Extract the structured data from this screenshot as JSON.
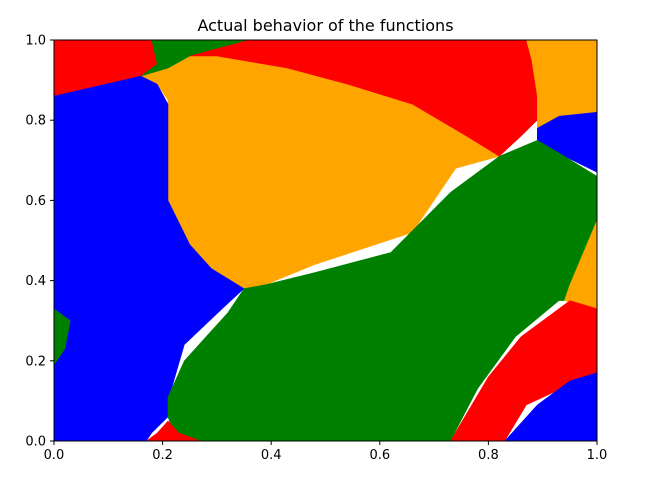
{
  "chart_data": {
    "type": "heatmap",
    "title": "Actual behavior of the functions",
    "xlabel": "",
    "ylabel": "",
    "xlim": [
      0,
      1
    ],
    "ylim": [
      0,
      1
    ],
    "xticks": [
      "0.0",
      "0.2",
      "0.4",
      "0.6",
      "0.8",
      "1.0"
    ],
    "yticks": [
      "0.0",
      "0.2",
      "0.4",
      "0.6",
      "0.8",
      "1.0"
    ],
    "grid": false,
    "legend": "none",
    "colors": [
      "red",
      "green",
      "blue",
      "orange"
    ],
    "regions": [
      {
        "color": "orange",
        "polygon": [
          [
            0.21,
            1.0
          ],
          [
            0.82,
            1.0
          ],
          [
            0.85,
            0.86
          ],
          [
            0.83,
            0.76
          ],
          [
            0.82,
            0.71
          ],
          [
            0.74,
            0.68
          ],
          [
            0.66,
            0.52
          ],
          [
            0.48,
            0.44
          ],
          [
            0.39,
            0.39
          ],
          [
            0.35,
            0.38
          ],
          [
            0.25,
            0.46
          ],
          [
            0.21,
            0.57
          ],
          [
            0.2,
            0.72
          ],
          [
            0.21,
            0.85
          ],
          [
            0.19,
            0.89
          ],
          [
            0.16,
            0.91
          ]
        ]
      },
      {
        "color": "red",
        "polygon": [
          [
            0.0,
            1.0
          ],
          [
            0.18,
            1.0
          ],
          [
            0.19,
            0.94
          ],
          [
            0.16,
            0.91
          ],
          [
            0.0,
            0.86
          ]
        ]
      },
      {
        "color": "green",
        "polygon": [
          [
            0.18,
            1.0
          ],
          [
            0.36,
            1.0
          ],
          [
            0.25,
            0.96
          ],
          [
            0.21,
            0.93
          ],
          [
            0.16,
            0.91
          ],
          [
            0.19,
            0.94
          ]
        ]
      },
      {
        "color": "red",
        "polygon": [
          [
            0.36,
            1.0
          ],
          [
            0.89,
            1.0
          ],
          [
            0.89,
            0.93
          ],
          [
            0.89,
            0.86
          ],
          [
            0.89,
            0.8
          ],
          [
            0.86,
            0.76
          ],
          [
            0.82,
            0.71
          ],
          [
            0.76,
            0.76
          ],
          [
            0.66,
            0.84
          ],
          [
            0.54,
            0.89
          ],
          [
            0.43,
            0.93
          ],
          [
            0.3,
            0.96
          ],
          [
            0.25,
            0.96
          ]
        ]
      },
      {
        "color": "orange",
        "polygon": [
          [
            0.87,
            1.0
          ],
          [
            1.0,
            1.0
          ],
          [
            1.0,
            0.81
          ],
          [
            0.93,
            0.81
          ],
          [
            0.9,
            0.78
          ],
          [
            0.89,
            0.75
          ],
          [
            0.89,
            0.86
          ],
          [
            0.88,
            0.95
          ]
        ]
      },
      {
        "color": "blue",
        "polygon": [
          [
            0.89,
            0.78
          ],
          [
            0.93,
            0.81
          ],
          [
            1.0,
            0.82
          ],
          [
            1.0,
            0.67
          ],
          [
            0.94,
            0.71
          ],
          [
            0.89,
            0.75
          ]
        ]
      },
      {
        "color": "blue",
        "polygon": [
          [
            0.0,
            0.86
          ],
          [
            0.16,
            0.91
          ],
          [
            0.19,
            0.89
          ],
          [
            0.21,
            0.84
          ],
          [
            0.21,
            0.74
          ],
          [
            0.21,
            0.6
          ],
          [
            0.25,
            0.49
          ],
          [
            0.29,
            0.43
          ],
          [
            0.35,
            0.38
          ],
          [
            0.31,
            0.33
          ],
          [
            0.24,
            0.24
          ],
          [
            0.21,
            0.1
          ],
          [
            0.21,
            0.06
          ],
          [
            0.18,
            0.02
          ],
          [
            0.17,
            0.0
          ],
          [
            0.0,
            0.0
          ]
        ]
      },
      {
        "color": "green",
        "polygon": [
          [
            0.0,
            0.33
          ],
          [
            0.03,
            0.3
          ],
          [
            0.02,
            0.23
          ],
          [
            0.0,
            0.19
          ]
        ]
      },
      {
        "color": "green",
        "polygon": [
          [
            0.35,
            0.38
          ],
          [
            0.39,
            0.39
          ],
          [
            0.48,
            0.42
          ],
          [
            0.62,
            0.47
          ],
          [
            0.73,
            0.62
          ],
          [
            0.82,
            0.71
          ],
          [
            0.89,
            0.75
          ],
          [
            0.94,
            0.71
          ],
          [
            1.0,
            0.66
          ],
          [
            1.0,
            0.55
          ],
          [
            0.98,
            0.45
          ],
          [
            0.95,
            0.35
          ],
          [
            0.93,
            0.35
          ],
          [
            0.85,
            0.26
          ],
          [
            0.78,
            0.13
          ],
          [
            0.73,
            0.0
          ],
          [
            0.27,
            0.0
          ],
          [
            0.22,
            0.02
          ],
          [
            0.21,
            0.06
          ],
          [
            0.21,
            0.11
          ],
          [
            0.24,
            0.2
          ],
          [
            0.28,
            0.26
          ],
          [
            0.32,
            0.32
          ]
        ]
      },
      {
        "color": "orange",
        "polygon": [
          [
            1.0,
            0.55
          ],
          [
            0.95,
            0.39
          ],
          [
            0.94,
            0.35
          ],
          [
            1.0,
            0.33
          ]
        ]
      },
      {
        "color": "red",
        "polygon": [
          [
            0.73,
            0.0
          ],
          [
            0.83,
            0.0
          ],
          [
            0.87,
            0.09
          ],
          [
            0.95,
            0.14
          ],
          [
            1.0,
            0.17
          ],
          [
            1.0,
            0.33
          ],
          [
            0.95,
            0.35
          ],
          [
            0.86,
            0.26
          ],
          [
            0.8,
            0.16
          ]
        ]
      },
      {
        "color": "blue",
        "polygon": [
          [
            0.83,
            0.0
          ],
          [
            1.0,
            0.0
          ],
          [
            1.0,
            0.17
          ],
          [
            0.95,
            0.15
          ],
          [
            0.89,
            0.09
          ]
        ]
      },
      {
        "color": "red",
        "polygon": [
          [
            0.17,
            0.0
          ],
          [
            0.27,
            0.0
          ],
          [
            0.23,
            0.02
          ],
          [
            0.21,
            0.05
          ],
          [
            0.19,
            0.02
          ]
        ]
      }
    ]
  }
}
